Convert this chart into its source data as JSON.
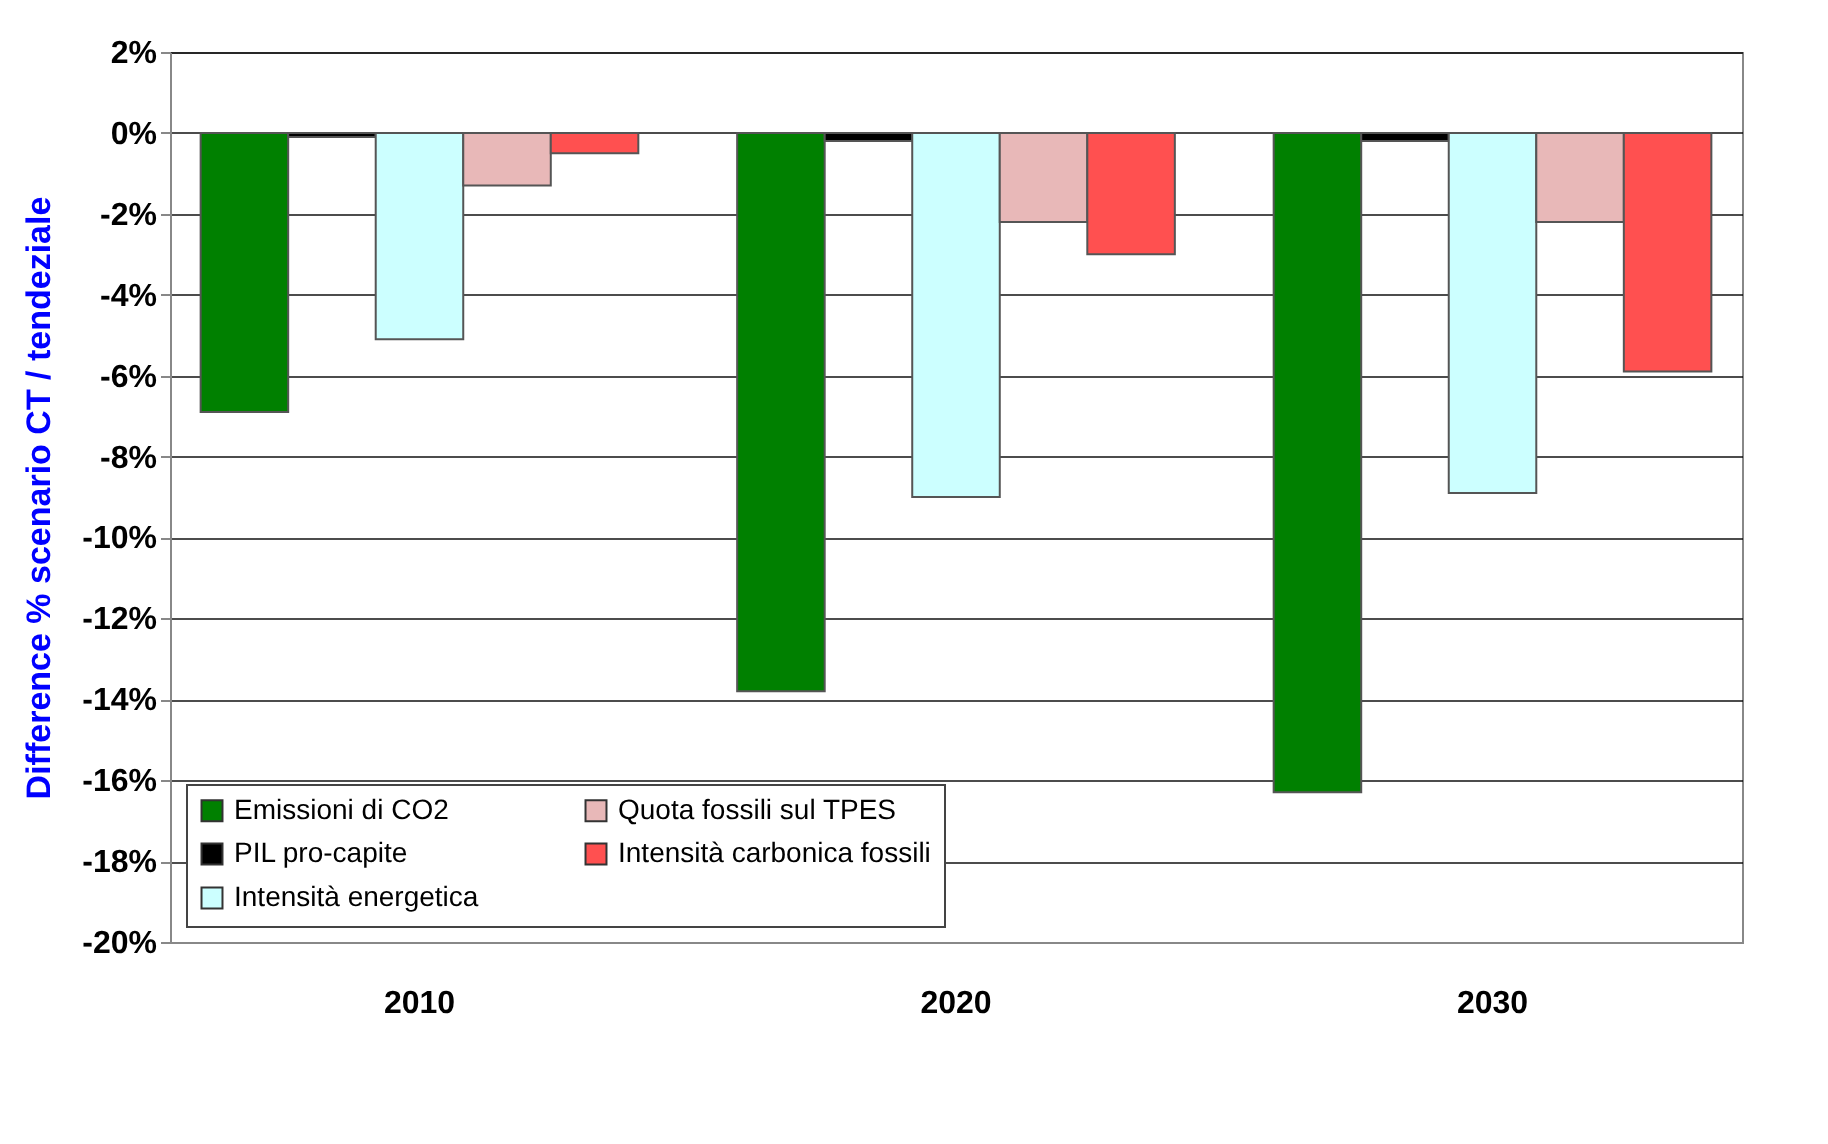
{
  "chart_data": {
    "type": "bar",
    "ylabel": "Difference % scenario CT / tendeziale",
    "categories": [
      "2010",
      "2020",
      "2030"
    ],
    "series": [
      {
        "name": "Emissioni di CO2",
        "color": "#008000",
        "values": [
          -6.9,
          -13.8,
          -16.3
        ]
      },
      {
        "name": "PIL pro-capite",
        "color": "#000000",
        "values": [
          -0.1,
          -0.2,
          -0.2
        ]
      },
      {
        "name": "Intensità energetica",
        "color": "#ccffff",
        "values": [
          -5.1,
          -9.0,
          -8.9
        ]
      },
      {
        "name": "Quota fossili sul TPES",
        "color": "#e8b8b8",
        "values": [
          -1.3,
          -2.2,
          -2.2
        ]
      },
      {
        "name": "Intensità carbonica fossili",
        "color": "#ff5050",
        "values": [
          -0.5,
          -3.0,
          -5.9
        ]
      }
    ],
    "ylim": [
      -20,
      2
    ],
    "yticks": [
      {
        "value": 2,
        "label": "2%"
      },
      {
        "value": 0,
        "label": "0%"
      },
      {
        "value": -2,
        "label": "-2%"
      },
      {
        "value": -4,
        "label": "-4%"
      },
      {
        "value": -6,
        "label": "-6%"
      },
      {
        "value": -8,
        "label": "-8%"
      },
      {
        "value": -10,
        "label": "-10%"
      },
      {
        "value": -12,
        "label": "-12%"
      },
      {
        "value": -14,
        "label": "-14%"
      },
      {
        "value": -16,
        "label": "-16%"
      },
      {
        "value": -18,
        "label": "-18%"
      },
      {
        "value": -20,
        "label": "-20%"
      }
    ],
    "grid": "y",
    "legend": "bottom left"
  }
}
